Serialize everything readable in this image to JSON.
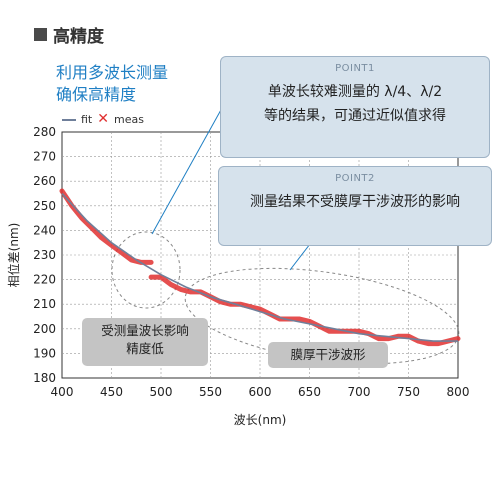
{
  "heading": "高精度",
  "lead": {
    "line1": "利用多波长测量",
    "line2": "确保高精度"
  },
  "legend": {
    "fit": "fit",
    "meas": "meas"
  },
  "point1": {
    "title": "POINT1",
    "line1": "单波长较难测量的 λ/4、λ/2",
    "line2": "等的结果，可通过近似值求得"
  },
  "point2": {
    "title": "POINT2",
    "line1": "测量结果不受膜厚干涉波形的影响"
  },
  "callout1": {
    "line1": "受测量波长影响",
    "line2": "精度低"
  },
  "callout2": {
    "line1": "膜厚干涉波形"
  },
  "colors": {
    "fit": "#6f7f9a",
    "meas": "#e03030",
    "accent": "#1f7fc4",
    "box": "#d6e2ec"
  },
  "chart_data": {
    "type": "line",
    "xlabel": "波长(nm)",
    "ylabel": "相位差(nm)",
    "xlim": [
      400,
      800
    ],
    "ylim": [
      180,
      280
    ],
    "xticks": [
      400,
      450,
      500,
      550,
      600,
      650,
      700,
      750,
      800
    ],
    "yticks": [
      180,
      190,
      200,
      210,
      220,
      230,
      240,
      250,
      260,
      270,
      280
    ],
    "grid": true,
    "series": [
      {
        "name": "fit",
        "x": [
          400,
          425,
          450,
          475,
          500,
          525,
          550,
          575,
          600,
          625,
          650,
          675,
          700,
          725,
          750,
          775,
          800
        ],
        "y": [
          255,
          244,
          235,
          228,
          222,
          217,
          213,
          210,
          207,
          204,
          202,
          200,
          198,
          197,
          196,
          195,
          195
        ]
      },
      {
        "name": "meas",
        "segments": [
          {
            "x": [
              400,
              410,
              420,
              430,
              440,
              450,
              460,
              470,
              480,
              490
            ],
            "y": [
              256,
              250,
              245,
              241,
              237,
              234,
              231,
              228,
              227,
              227
            ]
          },
          {
            "x": [
              490,
              500,
              510,
              520,
              530,
              540,
              550,
              560,
              570,
              580,
              590,
              600,
              610,
              620,
              630,
              640,
              650,
              660,
              670,
              680,
              690,
              700,
              710,
              720,
              730,
              740,
              750,
              760,
              770,
              780,
              790,
              800
            ],
            "y": [
              221,
              221,
              218,
              216,
              215,
              215,
              213,
              211,
              210,
              210,
              209,
              208,
              206,
              204,
              204,
              204,
              203,
              201,
              199,
              199,
              199,
              199,
              198,
              196,
              196,
              197,
              197,
              195,
              194,
              194,
              195,
              196
            ]
          }
        ]
      }
    ]
  }
}
